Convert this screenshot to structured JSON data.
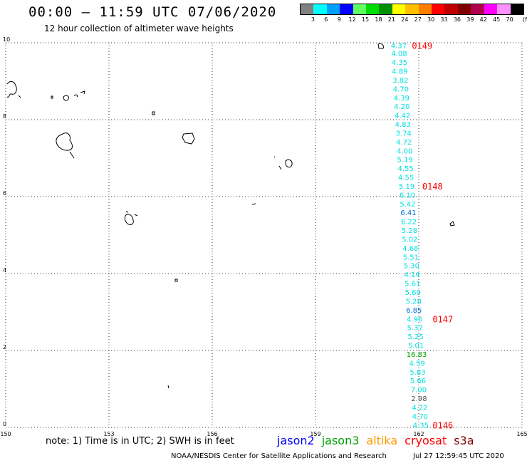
{
  "header": {
    "title": "00:00 – 11:59 UTC 07/06/2020",
    "subtitle": "12 hour collection of altimeter wave heights"
  },
  "color_scale": {
    "unit": "(ft)",
    "colors": [
      "#808080",
      "#00ffff",
      "#00a0ff",
      "#0000ff",
      "#60ff60",
      "#00dd00",
      "#009000",
      "#ffff00",
      "#ffc000",
      "#ff8000",
      "#ff0000",
      "#c00000",
      "#800000",
      "#b00050",
      "#ff00ff",
      "#ff90ff",
      "#000000"
    ],
    "labels": [
      "3",
      "6",
      "9",
      "12",
      "15",
      "18",
      "21",
      "24",
      "27",
      "30",
      "33",
      "36",
      "39",
      "42",
      "45",
      "70"
    ]
  },
  "map": {
    "x_ticks": [
      "150",
      "153",
      "156",
      "159",
      "162",
      "165"
    ],
    "y_ticks": [
      "0",
      "2",
      "4",
      "6",
      "8",
      "10"
    ],
    "lon_range": [
      150,
      165
    ],
    "lat_range": [
      0,
      10
    ],
    "grid": true,
    "track_colors": {
      "c": "#00e0e0",
      "b": "#0070e0",
      "g": "#00a000",
      "k": "#555555"
    },
    "wave_heights": [
      {
        "v": "4.37",
        "lon": 161.42,
        "lat": 9.92,
        "c": "c"
      },
      {
        "v": "4.08",
        "lon": 161.43,
        "lat": 9.71,
        "c": "c"
      },
      {
        "v": "4.35",
        "lon": 161.44,
        "lat": 9.48,
        "c": "c"
      },
      {
        "v": "4.89",
        "lon": 161.45,
        "lat": 9.25,
        "c": "c"
      },
      {
        "v": "3.82",
        "lon": 161.47,
        "lat": 9.02,
        "c": "c"
      },
      {
        "v": "4.70",
        "lon": 161.48,
        "lat": 8.79,
        "c": "c"
      },
      {
        "v": "4.39",
        "lon": 161.5,
        "lat": 8.56,
        "c": "c"
      },
      {
        "v": "4.20",
        "lon": 161.51,
        "lat": 8.33,
        "c": "c"
      },
      {
        "v": "4.42",
        "lon": 161.53,
        "lat": 8.1,
        "c": "c"
      },
      {
        "v": "4.83",
        "lon": 161.54,
        "lat": 7.87,
        "c": "c"
      },
      {
        "v": "3.74",
        "lon": 161.56,
        "lat": 7.64,
        "c": "c"
      },
      {
        "v": "4.72",
        "lon": 161.57,
        "lat": 7.41,
        "c": "c"
      },
      {
        "v": "4.00",
        "lon": 161.59,
        "lat": 7.18,
        "c": "c"
      },
      {
        "v": "5.19",
        "lon": 161.6,
        "lat": 6.95,
        "c": "c"
      },
      {
        "v": "4.55",
        "lon": 161.62,
        "lat": 6.72,
        "c": "c"
      },
      {
        "v": "4.55",
        "lon": 161.63,
        "lat": 6.49,
        "c": "c"
      },
      {
        "v": "5.19",
        "lon": 161.65,
        "lat": 6.26,
        "c": "c"
      },
      {
        "v": "6.10",
        "lon": 161.67,
        "lat": 6.03,
        "c": "c"
      },
      {
        "v": "5.42",
        "lon": 161.68,
        "lat": 5.8,
        "c": "c"
      },
      {
        "v": "6.41",
        "lon": 161.7,
        "lat": 5.57,
        "c": "b"
      },
      {
        "v": "6.22",
        "lon": 161.71,
        "lat": 5.34,
        "c": "c"
      },
      {
        "v": "5.28",
        "lon": 161.73,
        "lat": 5.11,
        "c": "c"
      },
      {
        "v": "5.02",
        "lon": 161.74,
        "lat": 4.88,
        "c": "c"
      },
      {
        "v": "4.68",
        "lon": 161.76,
        "lat": 4.65,
        "c": "c"
      },
      {
        "v": "5.51",
        "lon": 161.77,
        "lat": 4.42,
        "c": "c"
      },
      {
        "v": "5.30",
        "lon": 161.79,
        "lat": 4.19,
        "c": "c"
      },
      {
        "v": "4.14",
        "lon": 161.8,
        "lat": 3.96,
        "c": "c"
      },
      {
        "v": "5.61",
        "lon": 161.82,
        "lat": 3.73,
        "c": "c"
      },
      {
        "v": "5.69",
        "lon": 161.83,
        "lat": 3.5,
        "c": "c"
      },
      {
        "v": "5.28",
        "lon": 161.85,
        "lat": 3.27,
        "c": "c"
      },
      {
        "v": "6.85",
        "lon": 161.86,
        "lat": 3.04,
        "c": "b"
      },
      {
        "v": "4.96",
        "lon": 161.88,
        "lat": 2.81,
        "c": "c"
      },
      {
        "v": "5.37",
        "lon": 161.89,
        "lat": 2.58,
        "c": "c"
      },
      {
        "v": "5.25",
        "lon": 161.91,
        "lat": 2.35,
        "c": "c"
      },
      {
        "v": "5.01",
        "lon": 161.92,
        "lat": 2.12,
        "c": "c"
      },
      {
        "v": "16.83",
        "lon": 161.94,
        "lat": 1.89,
        "c": "g"
      },
      {
        "v": "4.59",
        "lon": 161.95,
        "lat": 1.66,
        "c": "c"
      },
      {
        "v": "5.83",
        "lon": 161.97,
        "lat": 1.43,
        "c": "c"
      },
      {
        "v": "5.66",
        "lon": 161.98,
        "lat": 1.2,
        "c": "c"
      },
      {
        "v": "7.00",
        "lon": 162.0,
        "lat": 0.97,
        "c": "c"
      },
      {
        "v": "2.98",
        "lon": 162.01,
        "lat": 0.74,
        "c": "k"
      },
      {
        "v": "4.22",
        "lon": 162.03,
        "lat": 0.51,
        "c": "c"
      },
      {
        "v": "4.70",
        "lon": 162.04,
        "lat": 0.28,
        "c": "c"
      },
      {
        "v": "4.35",
        "lon": 162.06,
        "lat": 0.05,
        "c": "c"
      }
    ],
    "time_labels": [
      {
        "t": "0149",
        "lon": 161.8,
        "lat": 9.92
      },
      {
        "t": "0148",
        "lon": 162.1,
        "lat": 6.26
      },
      {
        "t": "0147",
        "lon": 162.4,
        "lat": 2.81
      },
      {
        "t": "0146",
        "lon": 162.4,
        "lat": 0.05
      }
    ]
  },
  "footer": {
    "note": "note:  1) Time is in UTC;  2) SWH is in feet",
    "satellites": [
      {
        "name": "jason2",
        "color": "#0000ff"
      },
      {
        "name": "jason3",
        "color": "#00a000"
      },
      {
        "name": "altika",
        "color": "#ff9900"
      },
      {
        "name": "cryosat",
        "color": "#ff0000"
      },
      {
        "name": "s3a",
        "color": "#800000"
      }
    ],
    "credit": "NOAA/NESDIS Center for Satellite Applications and Research",
    "generated": "Jul 27 12:59:45 UTC 2020"
  }
}
